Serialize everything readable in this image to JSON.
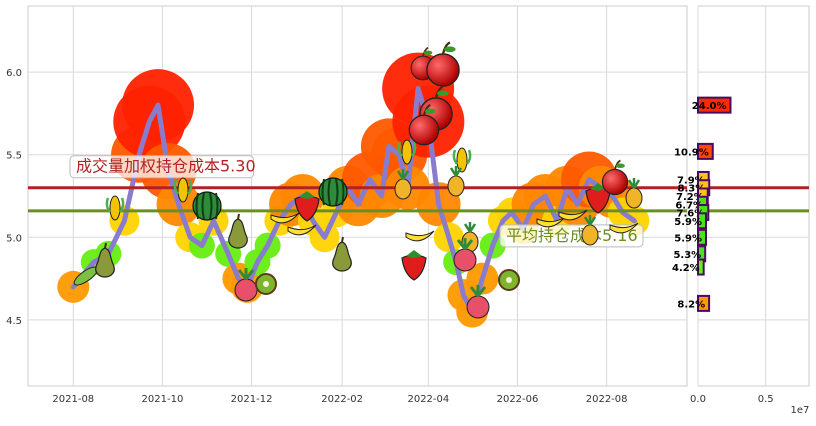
{
  "chart_data": [
    {
      "type": "line",
      "x": [
        "2021-08-01",
        "2021-08-15",
        "2021-08-25",
        "2021-09-05",
        "2021-09-15",
        "2021-09-22",
        "2021-09-28",
        "2021-10-05",
        "2021-10-12",
        "2021-10-20",
        "2021-10-28",
        "2021-11-05",
        "2021-11-15",
        "2021-11-22",
        "2021-11-28",
        "2021-12-05",
        "2021-12-12",
        "2021-12-20",
        "2021-12-28",
        "2022-01-05",
        "2022-01-12",
        "2022-01-20",
        "2022-01-28",
        "2022-02-05",
        "2022-02-12",
        "2022-02-20",
        "2022-02-28",
        "2022-03-05",
        "2022-03-12",
        "2022-03-18",
        "2022-03-25",
        "2022-04-01",
        "2022-04-08",
        "2022-04-15",
        "2022-04-20",
        "2022-04-25",
        "2022-05-01",
        "2022-05-08",
        "2022-05-15",
        "2022-05-22",
        "2022-05-28",
        "2022-06-05",
        "2022-06-12",
        "2022-06-20",
        "2022-06-28",
        "2022-07-05",
        "2022-07-12",
        "2022-07-20",
        "2022-07-28",
        "2022-08-05",
        "2022-08-12",
        "2022-08-20"
      ],
      "series": [
        {
          "values": [
            4.7,
            4.85,
            4.9,
            5.1,
            5.5,
            5.7,
            5.8,
            5.4,
            5.2,
            5.0,
            4.95,
            5.1,
            4.9,
            4.75,
            4.7,
            4.85,
            4.95,
            5.1,
            5.2,
            5.25,
            5.1,
            5.0,
            5.15,
            5.3,
            5.2,
            5.35,
            5.25,
            5.55,
            5.5,
            5.3,
            5.9,
            5.7,
            5.2,
            5.0,
            4.85,
            4.65,
            4.55,
            4.75,
            4.95,
            5.1,
            5.15,
            5.05,
            5.2,
            5.25,
            5.1,
            5.3,
            5.2,
            5.35,
            5.3,
            5.25,
            5.15,
            5.1
          ]
        }
      ],
      "reference_lines": [
        {
          "label": "成交量加权持仓成本5.30",
          "value": 5.3,
          "color": "#b22222"
        },
        {
          "label": "平均持仓成本5.16",
          "value": 5.16,
          "color": "#6b8e23"
        }
      ],
      "xticks": [
        "2021-08",
        "2021-10",
        "2021-12",
        "2022-02",
        "2022-04",
        "2022-06",
        "2022-08"
      ],
      "yticks": [
        "4.5",
        "5.0",
        "5.5",
        "6.0"
      ],
      "ylim": [
        4.1,
        6.4
      ],
      "grid": true
    },
    {
      "type": "bar",
      "orientation": "horizontal",
      "categories": [
        5.8,
        5.52,
        5.35,
        5.3,
        5.25,
        5.2,
        5.15,
        5.1,
        5.0,
        4.9,
        4.82,
        4.6
      ],
      "values": [
        0.24,
        0.109,
        0.079,
        0.083,
        0.072,
        0.067,
        0.076,
        0.059,
        0.059,
        0.053,
        0.042,
        0.082
      ],
      "labels": [
        "24.0%",
        "10.9%",
        "7.9%",
        "8.3%",
        "7.2%",
        "6.7%",
        "7.6%",
        "5.9%",
        "5.9%",
        "5.3%",
        "4.2%",
        "8.2%"
      ],
      "xticks": [
        "0.0",
        "0.5"
      ],
      "x_exponent": "1e7",
      "xlim": [
        0,
        0.82
      ],
      "x_unit": "1e7"
    }
  ],
  "colors": {
    "line": "#8a7ccd",
    "vw_line": "#b22222",
    "avg_line": "#6b8e23",
    "bar_edge": "#4b0a5e",
    "bar_top": "#ff2a00",
    "bar_mid": "#ff8c00",
    "bar_low": "#5ee12a"
  }
}
